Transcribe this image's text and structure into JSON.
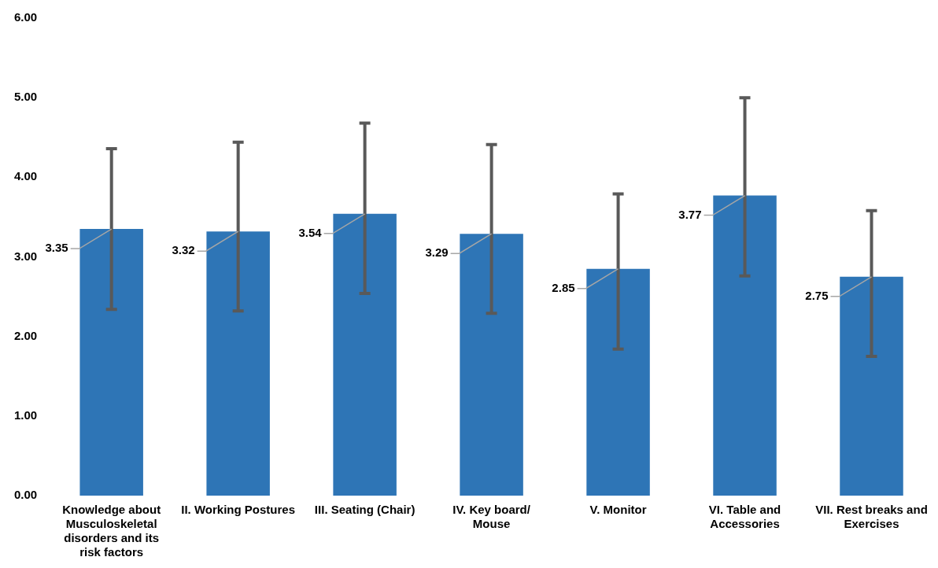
{
  "chart_data": {
    "type": "bar",
    "categories": [
      "Knowledge about Musculoskeletal disorders and its risk factors",
      "II. Working Postures",
      "III. Seating (Chair)",
      "IV. Key board/ Mouse",
      "V. Monitor",
      "VI. Table and Accessories",
      "VII. Rest breaks and Exercises"
    ],
    "values": [
      3.35,
      3.32,
      3.54,
      3.29,
      2.85,
      3.77,
      2.75
    ],
    "errors": [
      [
        2.34,
        4.36
      ],
      [
        2.32,
        4.44
      ],
      [
        2.54,
        4.68
      ],
      [
        2.29,
        4.41
      ],
      [
        1.84,
        3.79
      ],
      [
        2.76,
        5.0
      ],
      [
        1.75,
        3.58
      ]
    ],
    "color": "#2e75b6",
    "ylim": [
      0,
      6
    ],
    "yticks": [
      {
        "value": 0,
        "label": "0.00"
      },
      {
        "value": 1,
        "label": "1.00"
      },
      {
        "value": 2,
        "label": "2.00"
      },
      {
        "value": 3,
        "label": "3.00"
      },
      {
        "value": 4,
        "label": "4.00"
      },
      {
        "value": 5,
        "label": "5.00"
      },
      {
        "value": 6,
        "label": "6.00"
      }
    ],
    "data_labels": true,
    "grid": false,
    "legend": false
  }
}
